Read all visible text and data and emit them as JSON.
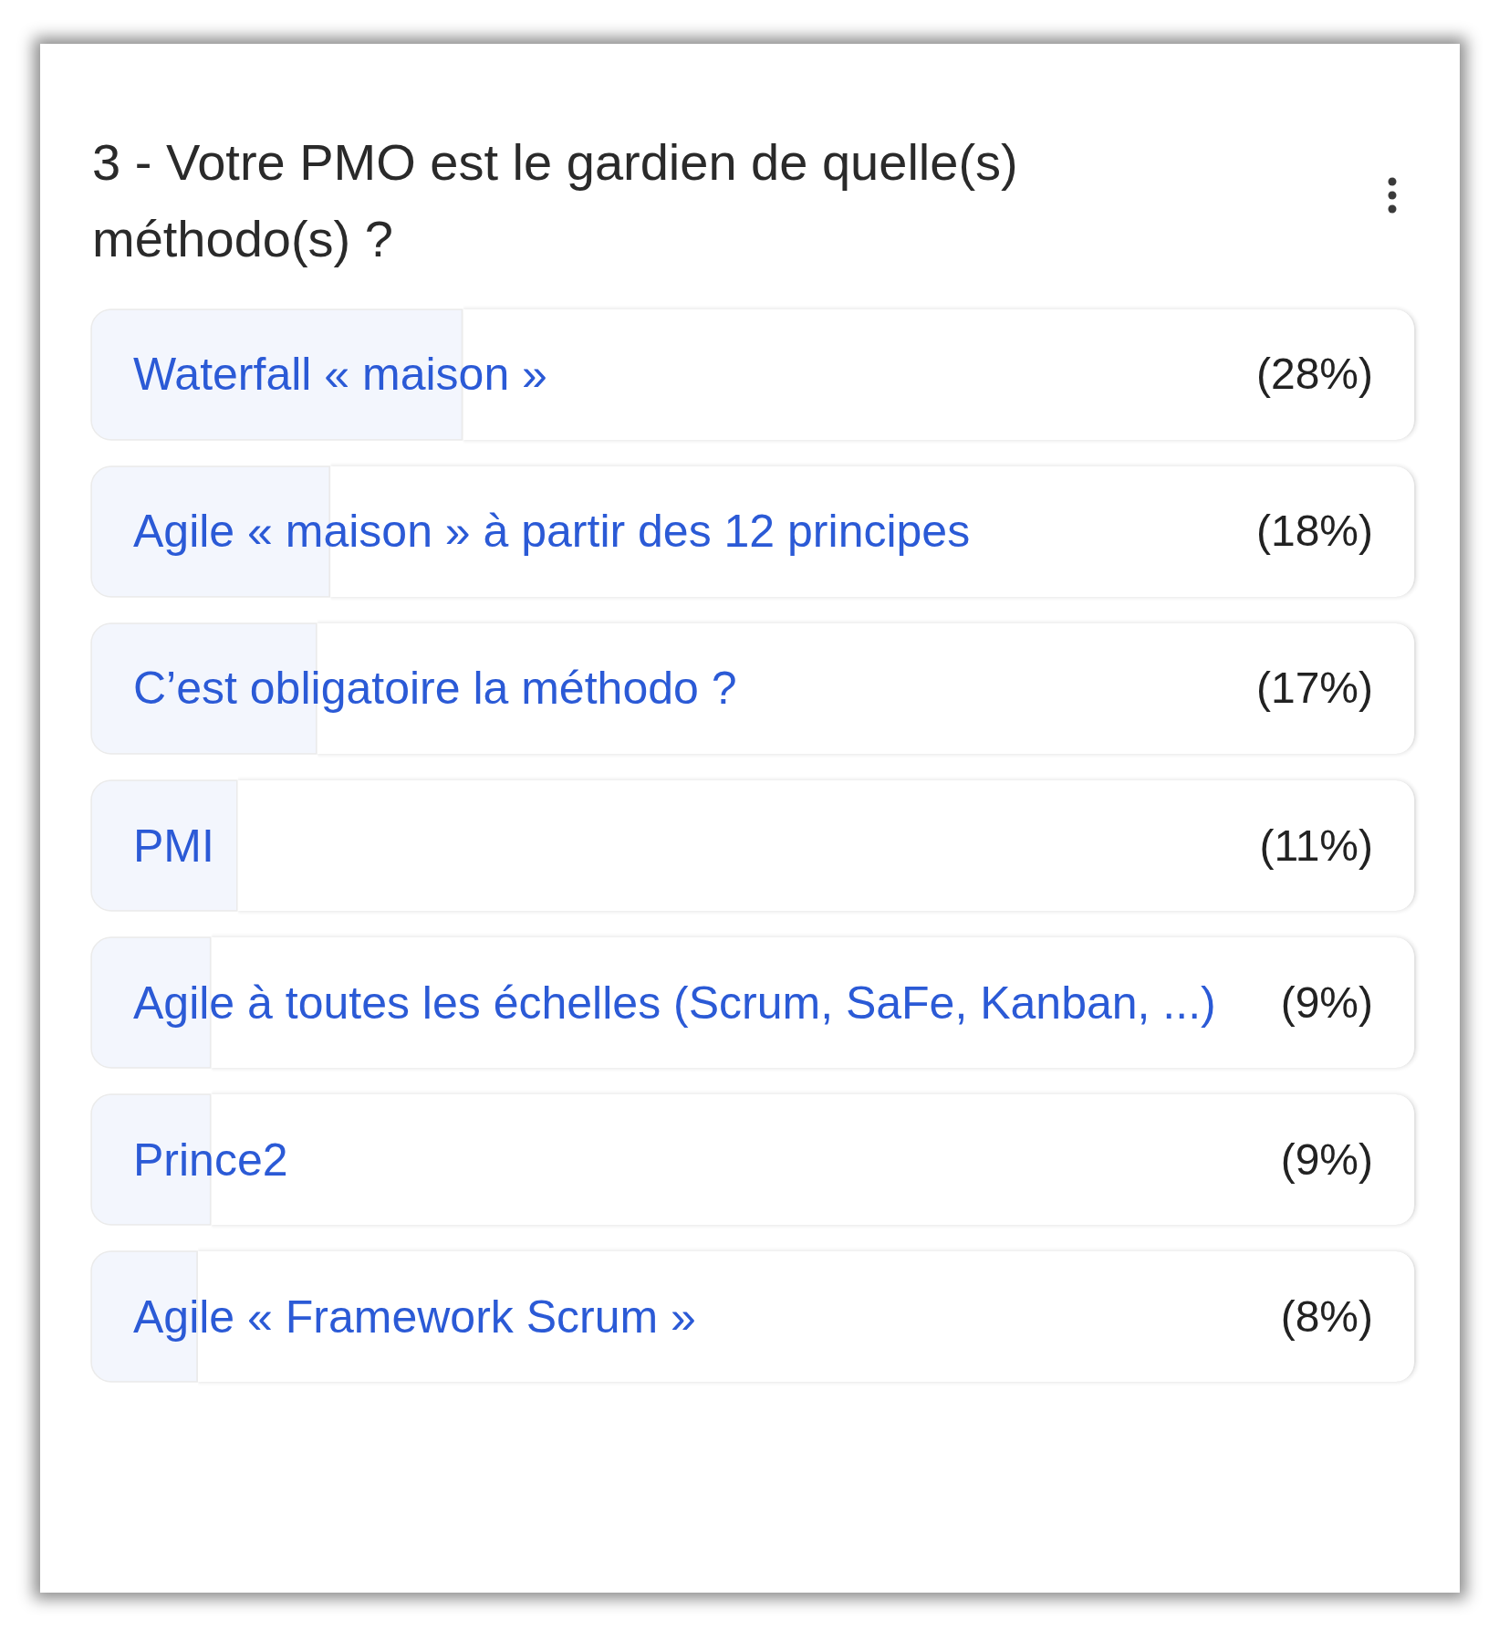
{
  "chart_data": {
    "type": "bar",
    "title": "3 - Votre PMO est le gardien de quelle(s) méthodo(s) ?",
    "orientation": "horizontal",
    "categories": [
      "Waterfall « maison »",
      "Agile « maison » à partir des 12 principes",
      "C’est obligatoire la méthodo ?",
      "PMI",
      "Agile à toutes les échelles (Scrum, SaFe, Kanban, ...)",
      "Prince2",
      "Agile « Framework Scrum »"
    ],
    "values": [
      28,
      18,
      17,
      11,
      9,
      9,
      8
    ],
    "value_labels": [
      "(28%)",
      "(18%)",
      "(17%)",
      "(11%)",
      "(9%)",
      "(9%)",
      "(8%)"
    ],
    "color": "#f3f6fd",
    "tick_labels": "y"
  }
}
